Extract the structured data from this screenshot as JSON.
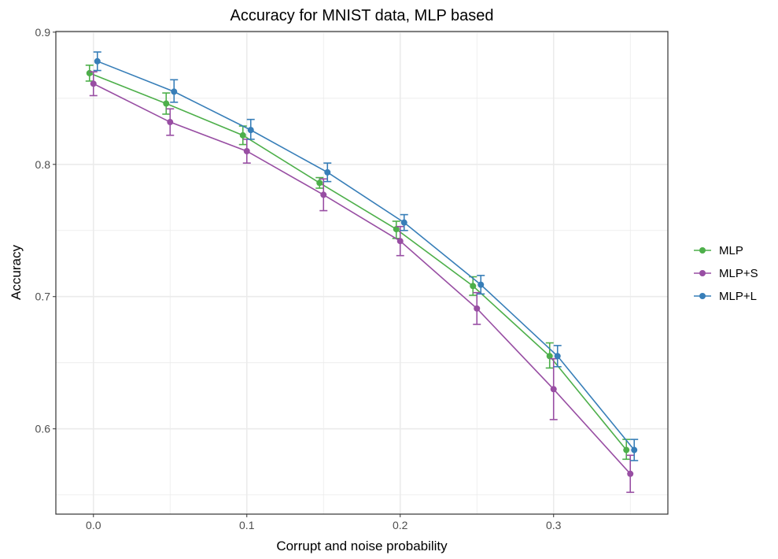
{
  "chart_data": {
    "type": "line",
    "title": "Accuracy for MNIST data, MLP based",
    "xlabel": "Corrupt and noise probability",
    "ylabel": "Accuracy",
    "x": [
      0.0,
      0.05,
      0.1,
      0.15,
      0.2,
      0.25,
      0.3,
      0.35
    ],
    "xticks": [
      0.0,
      0.1,
      0.2,
      0.3
    ],
    "xtick_labels": [
      "0.0",
      "0.1",
      "0.2",
      "0.3"
    ],
    "yticks": [
      0.6,
      0.7,
      0.8,
      0.9
    ],
    "ytick_labels": [
      "0.6",
      "0.7",
      "0.8",
      "0.9"
    ],
    "xlim": [
      -0.0245,
      0.3745
    ],
    "ylim": [
      0.5355,
      0.9005
    ],
    "grid": true,
    "legend_position": "right",
    "series": [
      {
        "name": "MLP",
        "color": "#4daf4a",
        "values": [
          0.869,
          0.846,
          0.822,
          0.786,
          0.751,
          0.708,
          0.655,
          0.584
        ],
        "lower": [
          0.863,
          0.838,
          0.815,
          0.782,
          0.744,
          0.701,
          0.646,
          0.577
        ],
        "upper": [
          0.875,
          0.854,
          0.829,
          0.79,
          0.757,
          0.715,
          0.665,
          0.592
        ]
      },
      {
        "name": "MLP+S",
        "color": "#984ea3",
        "values": [
          0.861,
          0.832,
          0.81,
          0.777,
          0.742,
          0.691,
          0.63,
          0.566
        ],
        "lower": [
          0.852,
          0.822,
          0.801,
          0.765,
          0.731,
          0.679,
          0.607,
          0.552
        ],
        "upper": [
          0.87,
          0.842,
          0.819,
          0.789,
          0.753,
          0.703,
          0.653,
          0.58
        ]
      },
      {
        "name": "MLP+L",
        "color": "#377eb8",
        "values": [
          0.878,
          0.855,
          0.826,
          0.794,
          0.756,
          0.709,
          0.655,
          0.584
        ],
        "lower": [
          0.871,
          0.847,
          0.819,
          0.787,
          0.75,
          0.702,
          0.647,
          0.576
        ],
        "upper": [
          0.885,
          0.864,
          0.834,
          0.801,
          0.762,
          0.716,
          0.663,
          0.592
        ]
      }
    ]
  }
}
